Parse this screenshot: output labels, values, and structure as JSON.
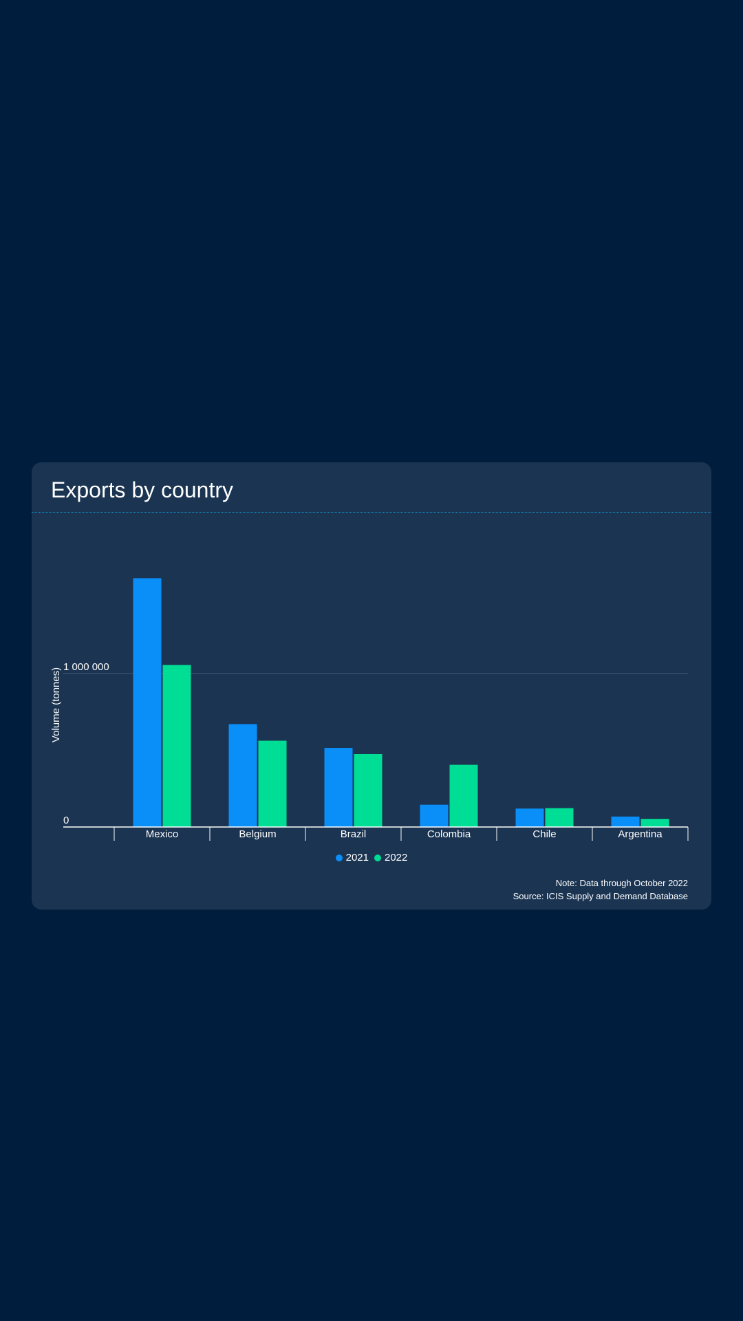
{
  "colors": {
    "page_bg": "#001d3d",
    "card_bg": "#1a3452",
    "series_2021": "#0a8ef8",
    "series_2022": "#00dd94",
    "divider": "#12a3d8"
  },
  "chart_data": {
    "type": "bar",
    "title": "Exports by country",
    "categories": [
      "Mexico",
      "Belgium",
      "Brazil",
      "Colombia",
      "Chile",
      "Argentina"
    ],
    "series": [
      {
        "name": "2021",
        "color": "#0a8ef8",
        "values": [
          1620000,
          670000,
          515000,
          145000,
          120000,
          68000
        ]
      },
      {
        "name": "2022",
        "color": "#00dd94",
        "values": [
          1055000,
          562000,
          475000,
          405000,
          123000,
          53000
        ]
      }
    ],
    "xlabel": "",
    "ylabel": "Volume (tonnes)",
    "ylim": [
      0,
      1680000
    ],
    "yticks": [
      {
        "value": 0,
        "label": "0"
      },
      {
        "value": 1000000,
        "label": "1 000 000"
      }
    ],
    "grid": true,
    "legend": "bottom-center"
  },
  "notes": {
    "note": "Note: Data through October 2022",
    "source": "Source: ICIS Supply and Demand Database"
  }
}
